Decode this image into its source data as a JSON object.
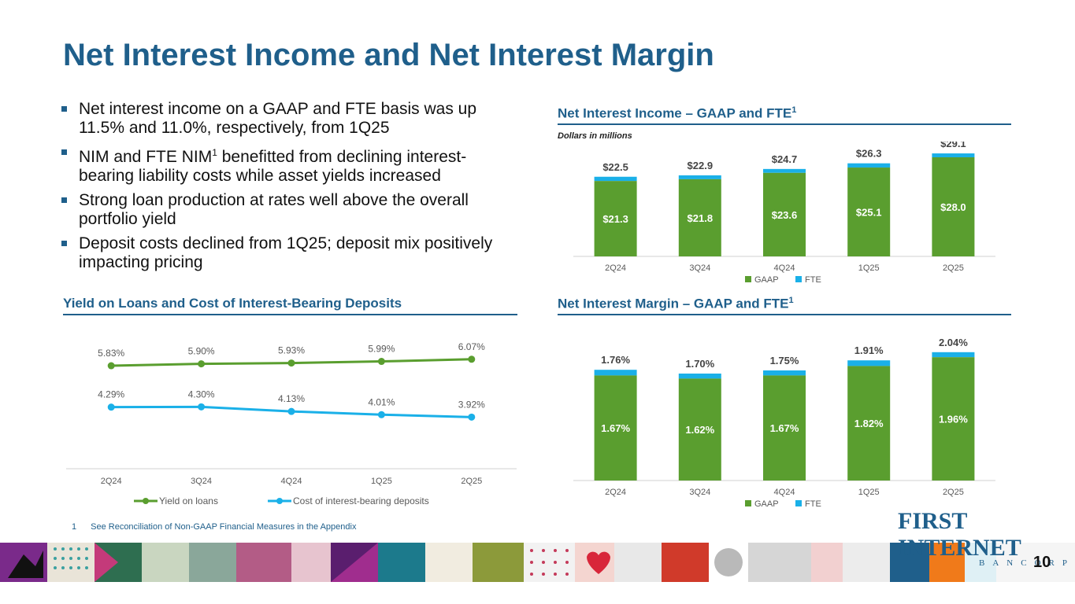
{
  "title": "Net Interest Income and Net Interest Margin",
  "bullets": [
    {
      "pre": "Net interest income on a GAAP and FTE basis was up 11.5% and 11.0%, respectively, from 1Q25",
      "sup": "",
      "post": ""
    },
    {
      "pre": "NIM and FTE NIM",
      "sup": "1",
      "post": " benefitted from declining interest-bearing liability costs while asset yields increased"
    },
    {
      "pre": "Strong loan production at rates well above the overall portfolio yield",
      "sup": "",
      "post": ""
    },
    {
      "pre": "Deposit costs declined from 1Q25; deposit mix positively impacting pricing",
      "sup": "",
      "post": ""
    }
  ],
  "sections": {
    "nii_title": "Net Interest Income – GAAP and FTE",
    "nii_sup": "1",
    "nii_subtitle": "Dollars in millions",
    "yield_title": "Yield on Loans and Cost of Interest-Bearing Deposits",
    "nim_title": "Net Interest Margin – GAAP and FTE",
    "nim_sup": "1"
  },
  "colors": {
    "gaap": "#5a9e2f",
    "fte": "#1ab0e8",
    "yield_line": "#5a9e2f",
    "cost_line": "#1ab0e8",
    "brand": "#1f5f8b"
  },
  "chart_data": [
    {
      "id": "nii",
      "type": "bar",
      "stacked": true,
      "title": "Net Interest Income – GAAP and FTE",
      "categories": [
        "2Q24",
        "3Q24",
        "4Q24",
        "1Q25",
        "2Q25"
      ],
      "series": [
        {
          "name": "GAAP",
          "values": [
            21.3,
            21.8,
            23.6,
            25.1,
            28.0
          ],
          "labels": [
            "$21.3",
            "$21.8",
            "$23.6",
            "$25.1",
            "$28.0"
          ]
        },
        {
          "name": "FTE",
          "totals": [
            22.5,
            22.9,
            24.7,
            26.3,
            29.1
          ],
          "labels": [
            "$22.5",
            "$22.9",
            "$24.7",
            "$26.3",
            "$29.1"
          ]
        }
      ],
      "ylim": [
        0,
        32
      ],
      "legend": "bottom"
    },
    {
      "id": "yield",
      "type": "line",
      "title": "Yield on Loans and Cost of Interest-Bearing Deposits",
      "categories": [
        "2Q24",
        "3Q24",
        "4Q24",
        "1Q25",
        "2Q25"
      ],
      "series": [
        {
          "name": "Yield on loans",
          "values": [
            5.83,
            5.9,
            5.93,
            5.99,
            6.07
          ],
          "labels": [
            "5.83%",
            "5.90%",
            "5.93%",
            "5.99%",
            "6.07%"
          ]
        },
        {
          "name": "Cost of interest-bearing deposits",
          "values": [
            4.29,
            4.3,
            4.13,
            4.01,
            3.92
          ],
          "labels": [
            "4.29%",
            "4.30%",
            "4.13%",
            "4.01%",
            "3.92%"
          ]
        }
      ],
      "ylim": [
        2.0,
        7.0
      ],
      "legend": "bottom"
    },
    {
      "id": "nim",
      "type": "bar",
      "stacked": true,
      "title": "Net Interest Margin – GAAP and FTE",
      "categories": [
        "2Q24",
        "3Q24",
        "4Q24",
        "1Q25",
        "2Q25"
      ],
      "series": [
        {
          "name": "GAAP",
          "values": [
            1.67,
            1.62,
            1.67,
            1.82,
            1.96
          ],
          "labels": [
            "1.67%",
            "1.62%",
            "1.67%",
            "1.82%",
            "1.96%"
          ]
        },
        {
          "name": "FTE",
          "totals": [
            1.76,
            1.7,
            1.75,
            1.91,
            2.04
          ],
          "labels": [
            "1.76%",
            "1.70%",
            "1.75%",
            "1.91%",
            "2.04%"
          ]
        }
      ],
      "ylim": [
        0,
        2.3
      ],
      "legend": "bottom"
    }
  ],
  "footnote": {
    "num": "1",
    "text": "See Reconciliation of Non-GAAP Financial Measures in the Appendix"
  },
  "logo": {
    "line1": "FIRST INTERNET",
    "line2": "BANCORP"
  },
  "page_number": "10"
}
